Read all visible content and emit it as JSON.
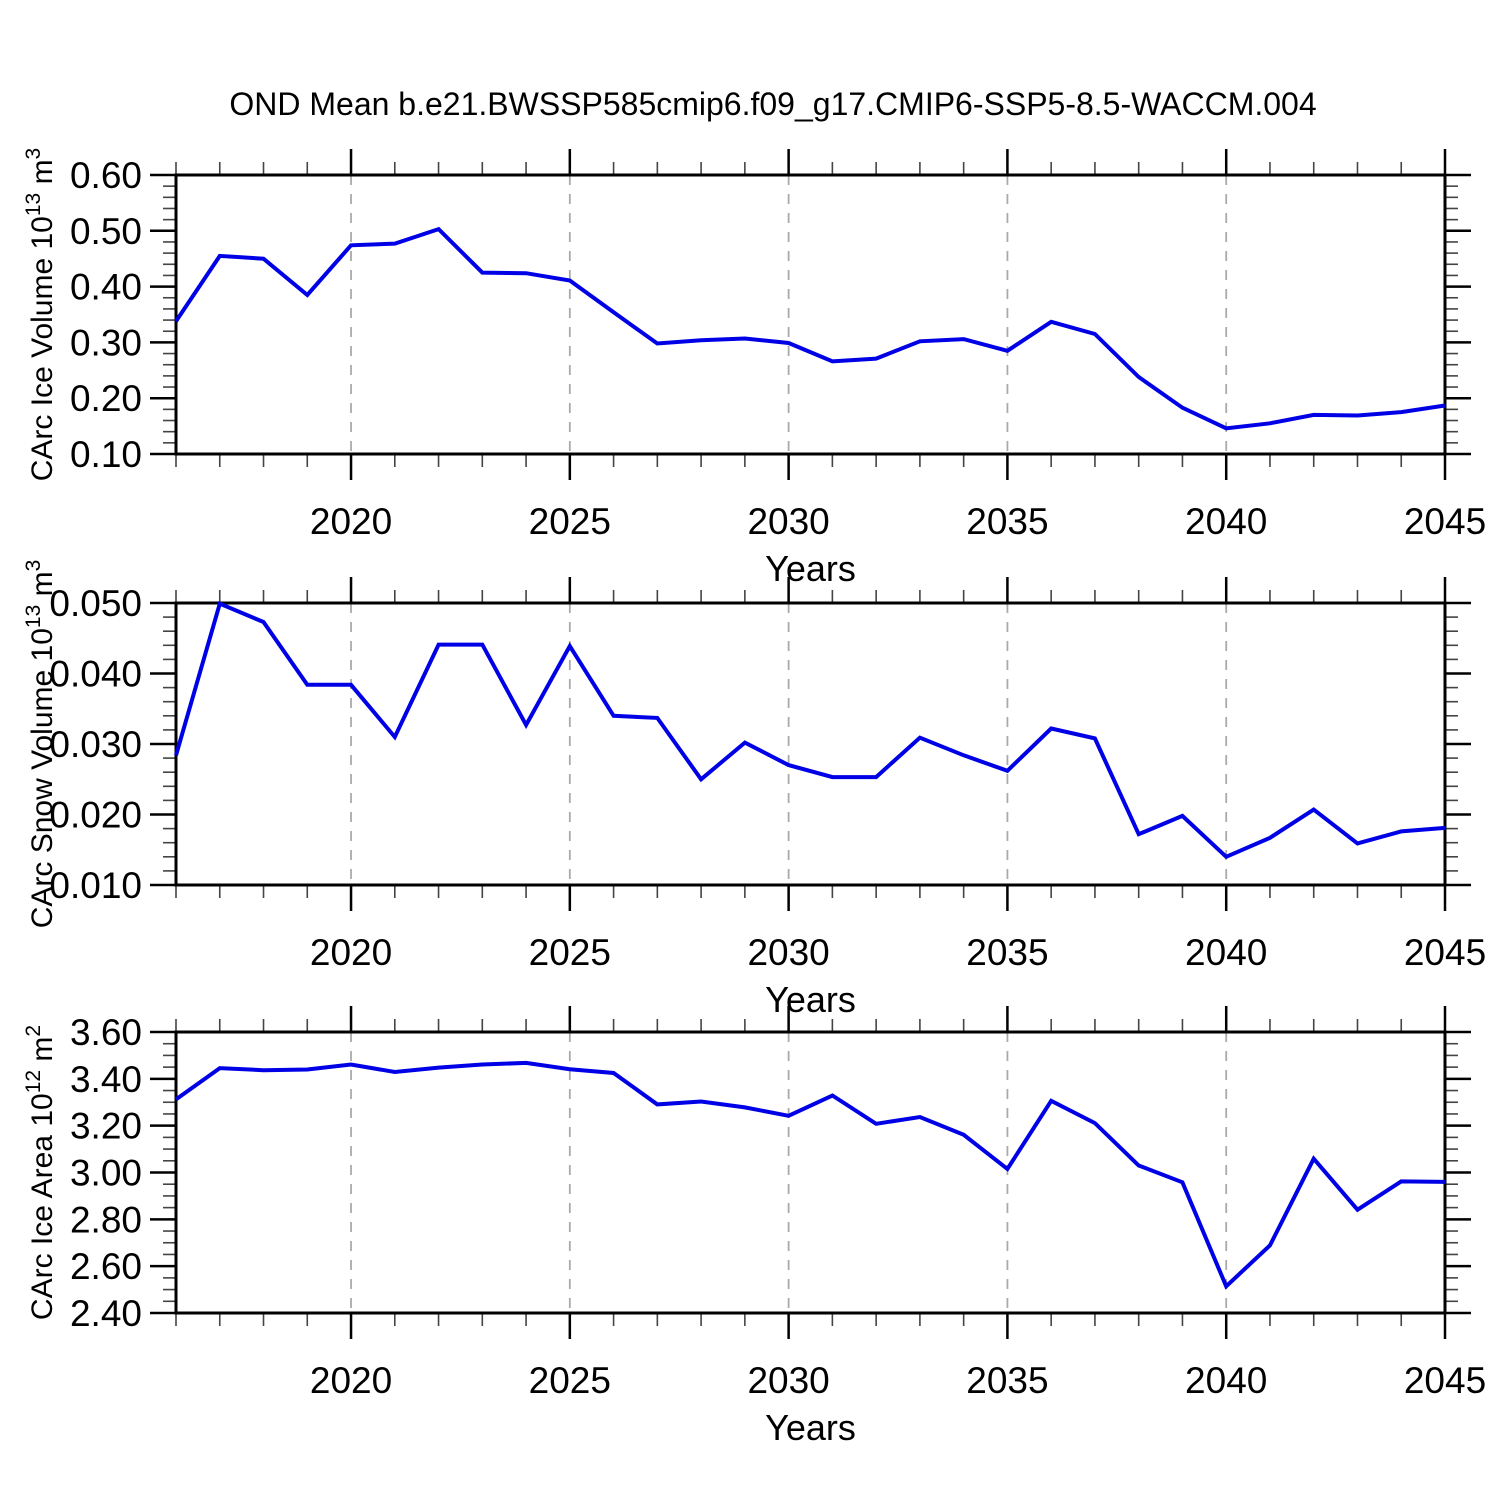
{
  "title": "OND Mean b.e21.BWSSP585cmip6.f09_g17.CMIP6-SSP5-8.5-WACCM.004",
  "style": {
    "line_color": "#0000e6",
    "grid_color": "#aaaaaa",
    "axis_color": "#000000",
    "minor_tick_color": "#444444",
    "text_color": "#000000",
    "background": "#ffffff"
  },
  "chart_data": [
    {
      "type": "line",
      "name": "ice-volume",
      "ylabel": "CArc Ice Volume 10^13 m^3",
      "xlabel": "Years",
      "x": [
        2016,
        2017,
        2018,
        2019,
        2020,
        2021,
        2022,
        2023,
        2024,
        2025,
        2026,
        2027,
        2028,
        2029,
        2030,
        2031,
        2032,
        2033,
        2034,
        2035,
        2036,
        2037,
        2038,
        2039,
        2040,
        2041,
        2042,
        2043,
        2044,
        2045
      ],
      "values": [
        0.338,
        0.455,
        0.45,
        0.385,
        0.474,
        0.477,
        0.503,
        0.425,
        0.424,
        0.411,
        0.354,
        0.298,
        0.304,
        0.307,
        0.299,
        0.266,
        0.271,
        0.302,
        0.306,
        0.285,
        0.337,
        0.315,
        0.238,
        0.183,
        0.146,
        0.155,
        0.17,
        0.169,
        0.175,
        0.187
      ],
      "xlim": [
        2016,
        2045
      ],
      "ylim": [
        0.1,
        0.6
      ],
      "yticks": [
        0.1,
        0.2,
        0.3,
        0.4,
        0.5,
        0.6
      ],
      "ytick_labels": [
        "0.10",
        "0.20",
        "0.30",
        "0.40",
        "0.50",
        "0.60"
      ],
      "y_minor_step": 0.02,
      "xticks": [
        2020,
        2025,
        2030,
        2035,
        2040,
        2045
      ],
      "xtick_labels": [
        "2020",
        "2025",
        "2030",
        "2035",
        "2040",
        "2045"
      ],
      "x_minor_step": 1,
      "grid_x": [
        2020,
        2025,
        2030,
        2035,
        2040
      ],
      "grid": "vertical-dashed",
      "legend": "none"
    },
    {
      "type": "line",
      "name": "snow-volume",
      "ylabel": "CArc Snow Volume 10^13 m^3",
      "xlabel": "Years",
      "x": [
        2016,
        2017,
        2018,
        2019,
        2020,
        2021,
        2022,
        2023,
        2024,
        2025,
        2026,
        2027,
        2028,
        2029,
        2030,
        2031,
        2032,
        2033,
        2034,
        2035,
        2036,
        2037,
        2038,
        2039,
        2040,
        2041,
        2042,
        2043,
        2044,
        2045
      ],
      "values": [
        0.0284,
        0.0499,
        0.0473,
        0.0384,
        0.0384,
        0.031,
        0.0441,
        0.0441,
        0.0327,
        0.0439,
        0.034,
        0.0337,
        0.025,
        0.0302,
        0.027,
        0.0253,
        0.0253,
        0.0309,
        0.0284,
        0.0262,
        0.0322,
        0.0308,
        0.0172,
        0.0198,
        0.014,
        0.0167,
        0.0207,
        0.0159,
        0.0176,
        0.0181
      ],
      "xlim": [
        2016,
        2045
      ],
      "ylim": [
        0.01,
        0.05
      ],
      "yticks": [
        0.01,
        0.02,
        0.03,
        0.04,
        0.05
      ],
      "ytick_labels": [
        "0.010",
        "0.020",
        "0.030",
        "0.040",
        "0.050"
      ],
      "y_minor_step": 0.002,
      "xticks": [
        2020,
        2025,
        2030,
        2035,
        2040,
        2045
      ],
      "xtick_labels": [
        "2020",
        "2025",
        "2030",
        "2035",
        "2040",
        "2045"
      ],
      "x_minor_step": 1,
      "grid_x": [
        2020,
        2025,
        2030,
        2035,
        2040
      ],
      "grid": "vertical-dashed",
      "legend": "none"
    },
    {
      "type": "line",
      "name": "ice-area",
      "ylabel": "CArc Ice Area 10^12 m^2",
      "xlabel": "Years",
      "x": [
        2016,
        2017,
        2018,
        2019,
        2020,
        2021,
        2022,
        2023,
        2024,
        2025,
        2026,
        2027,
        2028,
        2029,
        2030,
        2031,
        2032,
        2033,
        2034,
        2035,
        2036,
        2037,
        2038,
        2039,
        2040,
        2041,
        2042,
        2043,
        2044,
        2045
      ],
      "values": [
        3.312,
        3.446,
        3.437,
        3.44,
        3.461,
        3.429,
        3.448,
        3.461,
        3.468,
        3.441,
        3.425,
        3.291,
        3.303,
        3.278,
        3.242,
        3.329,
        3.208,
        3.237,
        3.161,
        3.015,
        3.306,
        3.211,
        3.03,
        2.958,
        2.514,
        2.689,
        3.059,
        2.841,
        2.962,
        2.96
      ],
      "xlim": [
        2016,
        2045
      ],
      "ylim": [
        2.4,
        3.6
      ],
      "yticks": [
        2.4,
        2.6,
        2.8,
        3.0,
        3.2,
        3.4,
        3.6
      ],
      "ytick_labels": [
        "2.40",
        "2.60",
        "2.80",
        "3.00",
        "3.20",
        "3.40",
        "3.60"
      ],
      "y_minor_step": 0.05,
      "xticks": [
        2020,
        2025,
        2030,
        2035,
        2040,
        2045
      ],
      "xtick_labels": [
        "2020",
        "2025",
        "2030",
        "2035",
        "2040",
        "2045"
      ],
      "x_minor_step": 1,
      "grid_x": [
        2020,
        2025,
        2030,
        2035,
        2040
      ],
      "grid": "vertical-dashed",
      "legend": "none"
    }
  ]
}
